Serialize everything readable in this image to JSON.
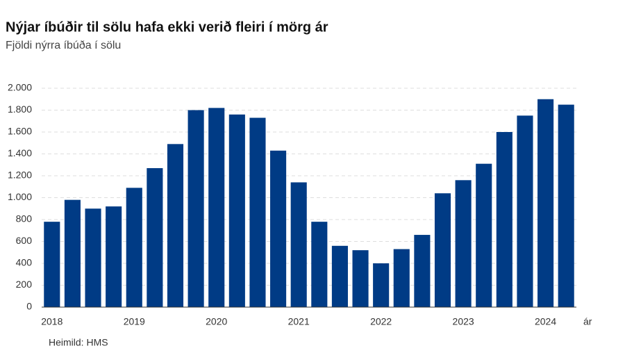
{
  "chart_data": {
    "type": "bar",
    "title": "Nýjar íbúðir til sölu hafa ekki verið fleiri í mörg ár",
    "subtitle": "Fjöldi nýrra íbúða í sölu",
    "x_label": "ár",
    "source": "Heimild: HMS",
    "categories": [
      "2018",
      null,
      null,
      null,
      "2019",
      null,
      null,
      null,
      "2020",
      null,
      null,
      null,
      "2021",
      null,
      null,
      null,
      "2022",
      null,
      null,
      null,
      "2023",
      null,
      null,
      null,
      "2024",
      null
    ],
    "values": [
      780,
      980,
      900,
      920,
      1090,
      1270,
      1490,
      1800,
      1820,
      1760,
      1730,
      1430,
      1140,
      780,
      560,
      520,
      400,
      530,
      660,
      1040,
      1160,
      1310,
      1600,
      1750,
      1900,
      1850
    ],
    "color": "#003b85",
    "ylim": [
      0,
      2000
    ],
    "yticks": [
      0,
      200,
      400,
      600,
      800,
      {
        "value": 1000,
        "label": "1.000"
      },
      {
        "value": 1200,
        "label": "1.200"
      },
      {
        "value": 1400,
        "label": "1.400"
      },
      {
        "value": 1600,
        "label": "1.600"
      },
      {
        "value": 1800,
        "label": "1.800"
      },
      {
        "value": 2000,
        "label": "2.000"
      }
    ],
    "grid": true
  }
}
